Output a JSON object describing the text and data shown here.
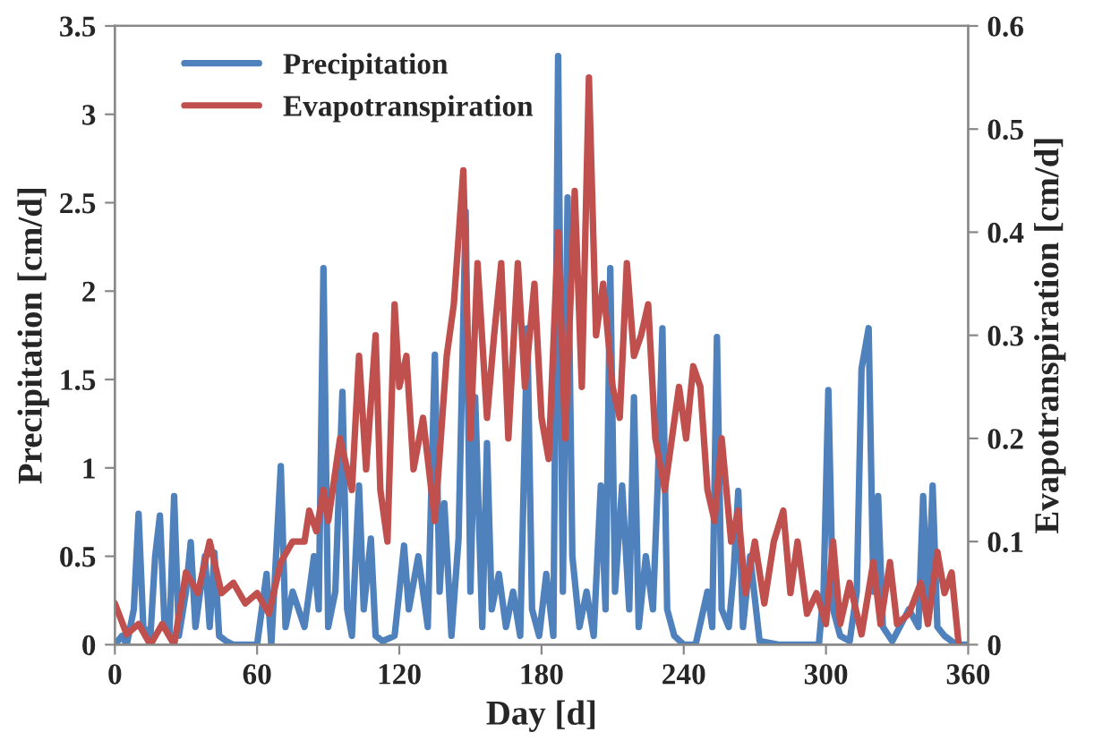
{
  "chart_data": {
    "type": "line",
    "xlabel": "Day [d]",
    "ylabel": "Precipitation [cm/d]",
    "y2label": "Evapotranspiration [cm/d]",
    "xlim": [
      0,
      360
    ],
    "xticks": [
      0,
      60,
      120,
      180,
      240,
      300,
      360
    ],
    "ylim": [
      0,
      3.5
    ],
    "yticks": [
      0,
      0.5,
      1,
      1.5,
      2,
      2.5,
      3,
      3.5
    ],
    "y2lim": [
      0,
      0.6
    ],
    "y2ticks": [
      0,
      0.1,
      0.2,
      0.3,
      0.4,
      0.5,
      0.6
    ],
    "legend": "top left",
    "grid": false,
    "line_style": "solid",
    "marker": "none",
    "series": [
      {
        "name": "Precipitation",
        "color": "#4f81bd",
        "x": [
          0,
          3,
          5,
          8,
          10,
          12,
          15,
          17,
          19,
          21,
          23,
          25,
          27,
          30,
          32,
          34,
          36,
          38,
          40,
          42,
          44,
          47,
          50,
          55,
          60,
          64,
          66,
          70,
          72,
          75,
          80,
          84,
          86,
          88,
          90,
          93,
          96,
          98,
          100,
          103,
          105,
          108,
          110,
          113,
          118,
          120,
          122,
          124,
          128,
          132,
          135,
          137,
          139,
          142,
          145,
          148,
          150,
          152,
          155,
          157,
          159,
          162,
          165,
          168,
          171,
          174,
          176,
          179,
          182,
          185,
          187,
          189,
          191,
          193,
          196,
          199,
          202,
          205,
          207,
          209,
          211,
          214,
          217,
          219,
          221,
          224,
          227,
          229,
          231,
          233,
          236,
          240,
          245,
          250,
          252,
          254,
          256,
          259,
          261,
          263,
          265,
          268,
          272,
          280,
          290,
          297,
          299,
          301,
          303,
          306,
          310,
          313,
          315,
          318,
          320,
          322,
          324,
          328,
          335,
          339,
          341,
          343,
          345,
          347,
          350,
          355,
          360
        ],
        "values": [
          0,
          0.05,
          0,
          0.2,
          0.74,
          0.1,
          0.05,
          0.5,
          0.73,
          0.1,
          0.05,
          0.84,
          0.05,
          0.3,
          0.58,
          0.1,
          0.3,
          0.5,
          0.1,
          0.52,
          0.05,
          0.02,
          0,
          0,
          0,
          0.4,
          0,
          1.01,
          0.1,
          0.3,
          0.1,
          0.5,
          0.2,
          2.13,
          0.1,
          0.3,
          1.43,
          0.2,
          0.05,
          0.9,
          0.2,
          0.6,
          0.05,
          0.02,
          0.05,
          0.3,
          0.56,
          0.2,
          0.5,
          0.1,
          1.64,
          0.3,
          0.8,
          0.05,
          0.6,
          2.45,
          0.3,
          1.4,
          0.1,
          1.14,
          0.2,
          0.4,
          0.1,
          0.3,
          0.05,
          1.79,
          0.2,
          0.05,
          0.4,
          0.05,
          3.33,
          0.3,
          2.53,
          0.5,
          0.1,
          0.3,
          0.05,
          0.9,
          0.2,
          2.13,
          0.3,
          0.9,
          0.2,
          1.4,
          0.1,
          0.5,
          0.2,
          0.9,
          1.79,
          0.2,
          0.05,
          0,
          0,
          0.3,
          0.1,
          1.74,
          0.2,
          0.1,
          0.4,
          0.87,
          0.1,
          0.5,
          0.02,
          0,
          0,
          0,
          0.3,
          1.44,
          0.2,
          0.05,
          0.02,
          0.3,
          1.56,
          1.79,
          0.3,
          0.84,
          0.1,
          0.02,
          0.2,
          0.1,
          0.84,
          0.2,
          0.9,
          0.1,
          0.05,
          0,
          0
        ]
      },
      {
        "name": "Evapotranspiration",
        "color": "#c0504d",
        "axis": "y2",
        "x": [
          0,
          5,
          10,
          15,
          20,
          25,
          30,
          35,
          40,
          45,
          50,
          55,
          60,
          65,
          70,
          75,
          80,
          82,
          85,
          88,
          90,
          95,
          100,
          103,
          106,
          110,
          112,
          115,
          118,
          120,
          123,
          126,
          130,
          135,
          140,
          143,
          147,
          150,
          153,
          157,
          160,
          163,
          166,
          170,
          173,
          177,
          180,
          183,
          187,
          190,
          194,
          197,
          200,
          203,
          206,
          210,
          213,
          216,
          219,
          222,
          225,
          228,
          232,
          235,
          238,
          241,
          244,
          247,
          250,
          253,
          256,
          260,
          263,
          266,
          270,
          274,
          278,
          282,
          285,
          288,
          292,
          296,
          300,
          303,
          306,
          310,
          315,
          320,
          323,
          327,
          330,
          335,
          340,
          343,
          347,
          350,
          353,
          356
        ],
        "values": [
          0.04,
          0.01,
          0.02,
          0,
          0.02,
          0,
          0.07,
          0.05,
          0.1,
          0.05,
          0.06,
          0.04,
          0.05,
          0.03,
          0.08,
          0.1,
          0.1,
          0.13,
          0.11,
          0.15,
          0.12,
          0.2,
          0.15,
          0.28,
          0.17,
          0.3,
          0.15,
          0.1,
          0.33,
          0.25,
          0.28,
          0.17,
          0.22,
          0.12,
          0.28,
          0.33,
          0.46,
          0.2,
          0.37,
          0.22,
          0.3,
          0.37,
          0.2,
          0.37,
          0.25,
          0.35,
          0.22,
          0.18,
          0.4,
          0.2,
          0.44,
          0.25,
          0.55,
          0.3,
          0.35,
          0.25,
          0.22,
          0.37,
          0.28,
          0.3,
          0.33,
          0.2,
          0.15,
          0.2,
          0.25,
          0.2,
          0.27,
          0.25,
          0.15,
          0.12,
          0.2,
          0.1,
          0.13,
          0.05,
          0.1,
          0.04,
          0.1,
          0.13,
          0.05,
          0.1,
          0.03,
          0.05,
          0.02,
          0.1,
          0.02,
          0.06,
          0.01,
          0.08,
          0.02,
          0.08,
          0.02,
          0.03,
          0.06,
          0.02,
          0.09,
          0.05,
          0.07,
          0
        ]
      }
    ]
  }
}
